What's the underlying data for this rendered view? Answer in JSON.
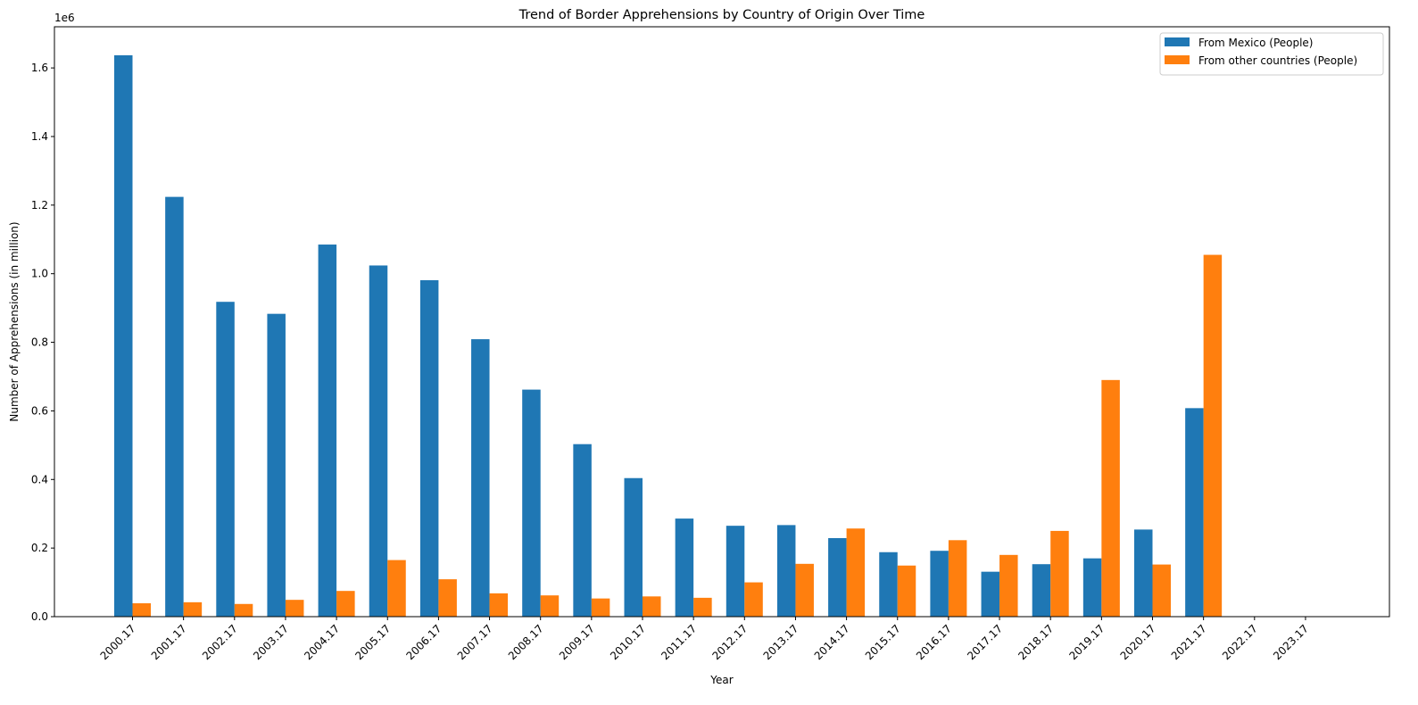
{
  "chart_data": {
    "type": "bar",
    "title": "Trend of Border Apprehensions by Country of Origin Over Time",
    "xlabel": "Year",
    "ylabel": "Number of Apprehensions (in million)",
    "offset_label": "1e6",
    "categories": [
      "2000.17",
      "2001.17",
      "2002.17",
      "2003.17",
      "2004.17",
      "2005.17",
      "2006.17",
      "2007.17",
      "2008.17",
      "2009.17",
      "2010.17",
      "2011.17",
      "2012.17",
      "2013.17",
      "2014.17",
      "2015.17",
      "2016.17",
      "2017.17",
      "2018.17",
      "2019.17",
      "2020.17",
      "2021.17",
      "2022.17",
      "2023.17"
    ],
    "series": [
      {
        "name": "From Mexico (People)",
        "color": "#1f77b4",
        "values": [
          1637000,
          1224000,
          918000,
          883000,
          1085000,
          1024000,
          981000,
          809000,
          662000,
          503000,
          404000,
          286000,
          265000,
          267000,
          229000,
          188000,
          192000,
          131000,
          153000,
          170000,
          254000,
          608000,
          0,
          0
        ]
      },
      {
        "name": "From other countries (People)",
        "color": "#ff7f0e",
        "values": [
          39000,
          42000,
          37000,
          49000,
          75000,
          165000,
          109000,
          68000,
          62000,
          53000,
          59000,
          55000,
          100000,
          154000,
          257000,
          149000,
          223000,
          180000,
          250000,
          690000,
          152000,
          1055000,
          0,
          0
        ]
      }
    ],
    "yticks": [
      "0.0",
      "0.2",
      "0.4",
      "0.6",
      "0.8",
      "1.0",
      "1.2",
      "1.4",
      "1.6"
    ],
    "ylim": [
      0,
      1720000
    ],
    "grid": false,
    "legend_position": "top-right"
  }
}
